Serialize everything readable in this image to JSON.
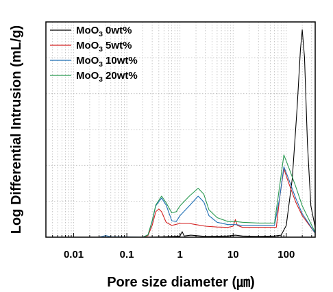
{
  "chart_data": {
    "type": "line",
    "xlabel": "Pore size diameter (㎛)",
    "ylabel": "Log Differential Intrusion (mL/g)",
    "x_scale": "log",
    "xlim": [
      0.003,
      350
    ],
    "ylim": [
      0,
      5.5
    ],
    "x_ticks": [
      0.01,
      0.1,
      1,
      10,
      100
    ],
    "x_tick_labels": [
      "0.01",
      "0.1",
      "1",
      "10",
      "100"
    ],
    "y_tick_labels_shown": false,
    "grid": true,
    "legend_position": "top-left",
    "series": [
      {
        "name": "MoO3 0wt%",
        "name_base": "MoO",
        "name_sub": "3",
        "name_rest": " 0wt%",
        "color": "#000000",
        "points": [
          [
            0.003,
            0
          ],
          [
            0.3,
            0
          ],
          [
            0.5,
            0.01
          ],
          [
            0.8,
            0.02
          ],
          [
            1.0,
            0.03
          ],
          [
            1.1,
            0.14
          ],
          [
            1.2,
            0.03
          ],
          [
            1.6,
            0.05
          ],
          [
            2.0,
            0.04
          ],
          [
            3,
            0.02
          ],
          [
            8,
            0.03
          ],
          [
            11,
            0.05
          ],
          [
            15,
            0.03
          ],
          [
            30,
            0.02
          ],
          [
            60,
            0.03
          ],
          [
            80,
            0.05
          ],
          [
            100,
            0.3
          ],
          [
            130,
            1.5
          ],
          [
            160,
            3.3
          ],
          [
            185,
            4.8
          ],
          [
            200,
            5.3
          ],
          [
            220,
            4.6
          ],
          [
            250,
            2.4
          ],
          [
            290,
            0.8
          ],
          [
            350,
            0.25
          ]
        ]
      },
      {
        "name": "MoO3 5wt%",
        "name_base": "MoO",
        "name_sub": "3",
        "name_rest": " 5wt%",
        "color": "#d42020",
        "points": [
          [
            0.003,
            0
          ],
          [
            0.2,
            0
          ],
          [
            0.25,
            0.04
          ],
          [
            0.3,
            0.3
          ],
          [
            0.35,
            0.65
          ],
          [
            0.4,
            0.72
          ],
          [
            0.45,
            0.65
          ],
          [
            0.55,
            0.38
          ],
          [
            0.7,
            0.3
          ],
          [
            1.0,
            0.35
          ],
          [
            1.5,
            0.35
          ],
          [
            2.0,
            0.32
          ],
          [
            3,
            0.28
          ],
          [
            5,
            0.26
          ],
          [
            8,
            0.25
          ],
          [
            10,
            0.28
          ],
          [
            11,
            0.45
          ],
          [
            12,
            0.3
          ],
          [
            15,
            0.25
          ],
          [
            30,
            0.25
          ],
          [
            50,
            0.25
          ],
          [
            65,
            0.25
          ],
          [
            75,
            1.0
          ],
          [
            90,
            1.75
          ],
          [
            110,
            1.4
          ],
          [
            150,
            0.9
          ],
          [
            200,
            0.55
          ],
          [
            350,
            0.1
          ]
        ]
      },
      {
        "name": "MoO3 10wt%",
        "name_base": "MoO",
        "name_sub": "3",
        "name_rest": " 10wt%",
        "color": "#1f6fb5",
        "points": [
          [
            0.003,
            0
          ],
          [
            0.03,
            0
          ],
          [
            0.04,
            0.04
          ],
          [
            0.05,
            0.01
          ],
          [
            0.2,
            0
          ],
          [
            0.25,
            0.06
          ],
          [
            0.3,
            0.4
          ],
          [
            0.35,
            0.8
          ],
          [
            0.45,
            1.0
          ],
          [
            0.55,
            0.82
          ],
          [
            0.7,
            0.42
          ],
          [
            0.85,
            0.4
          ],
          [
            1.0,
            0.55
          ],
          [
            1.5,
            0.8
          ],
          [
            2.2,
            1.05
          ],
          [
            2.8,
            0.9
          ],
          [
            3.5,
            0.55
          ],
          [
            5,
            0.38
          ],
          [
            8,
            0.32
          ],
          [
            11,
            0.32
          ],
          [
            15,
            0.3
          ],
          [
            30,
            0.3
          ],
          [
            60,
            0.3
          ],
          [
            75,
            1.0
          ],
          [
            90,
            1.8
          ],
          [
            110,
            1.5
          ],
          [
            150,
            1.0
          ],
          [
            200,
            0.6
          ],
          [
            350,
            0.1
          ]
        ]
      },
      {
        "name": "MoO3 20wt%",
        "name_base": "MoO",
        "name_sub": "3",
        "name_rest": " 20wt%",
        "color": "#2a9a52",
        "points": [
          [
            0.003,
            0
          ],
          [
            0.2,
            0
          ],
          [
            0.25,
            0.06
          ],
          [
            0.3,
            0.42
          ],
          [
            0.35,
            0.82
          ],
          [
            0.45,
            1.05
          ],
          [
            0.55,
            0.88
          ],
          [
            0.7,
            0.62
          ],
          [
            0.85,
            0.65
          ],
          [
            1.0,
            0.8
          ],
          [
            1.5,
            1.05
          ],
          [
            2.2,
            1.25
          ],
          [
            2.8,
            1.1
          ],
          [
            3.5,
            0.7
          ],
          [
            5,
            0.5
          ],
          [
            8,
            0.4
          ],
          [
            11,
            0.4
          ],
          [
            15,
            0.38
          ],
          [
            30,
            0.36
          ],
          [
            60,
            0.36
          ],
          [
            75,
            1.3
          ],
          [
            90,
            2.1
          ],
          [
            110,
            1.8
          ],
          [
            150,
            1.3
          ],
          [
            200,
            0.8
          ],
          [
            350,
            0.12
          ]
        ]
      }
    ]
  }
}
